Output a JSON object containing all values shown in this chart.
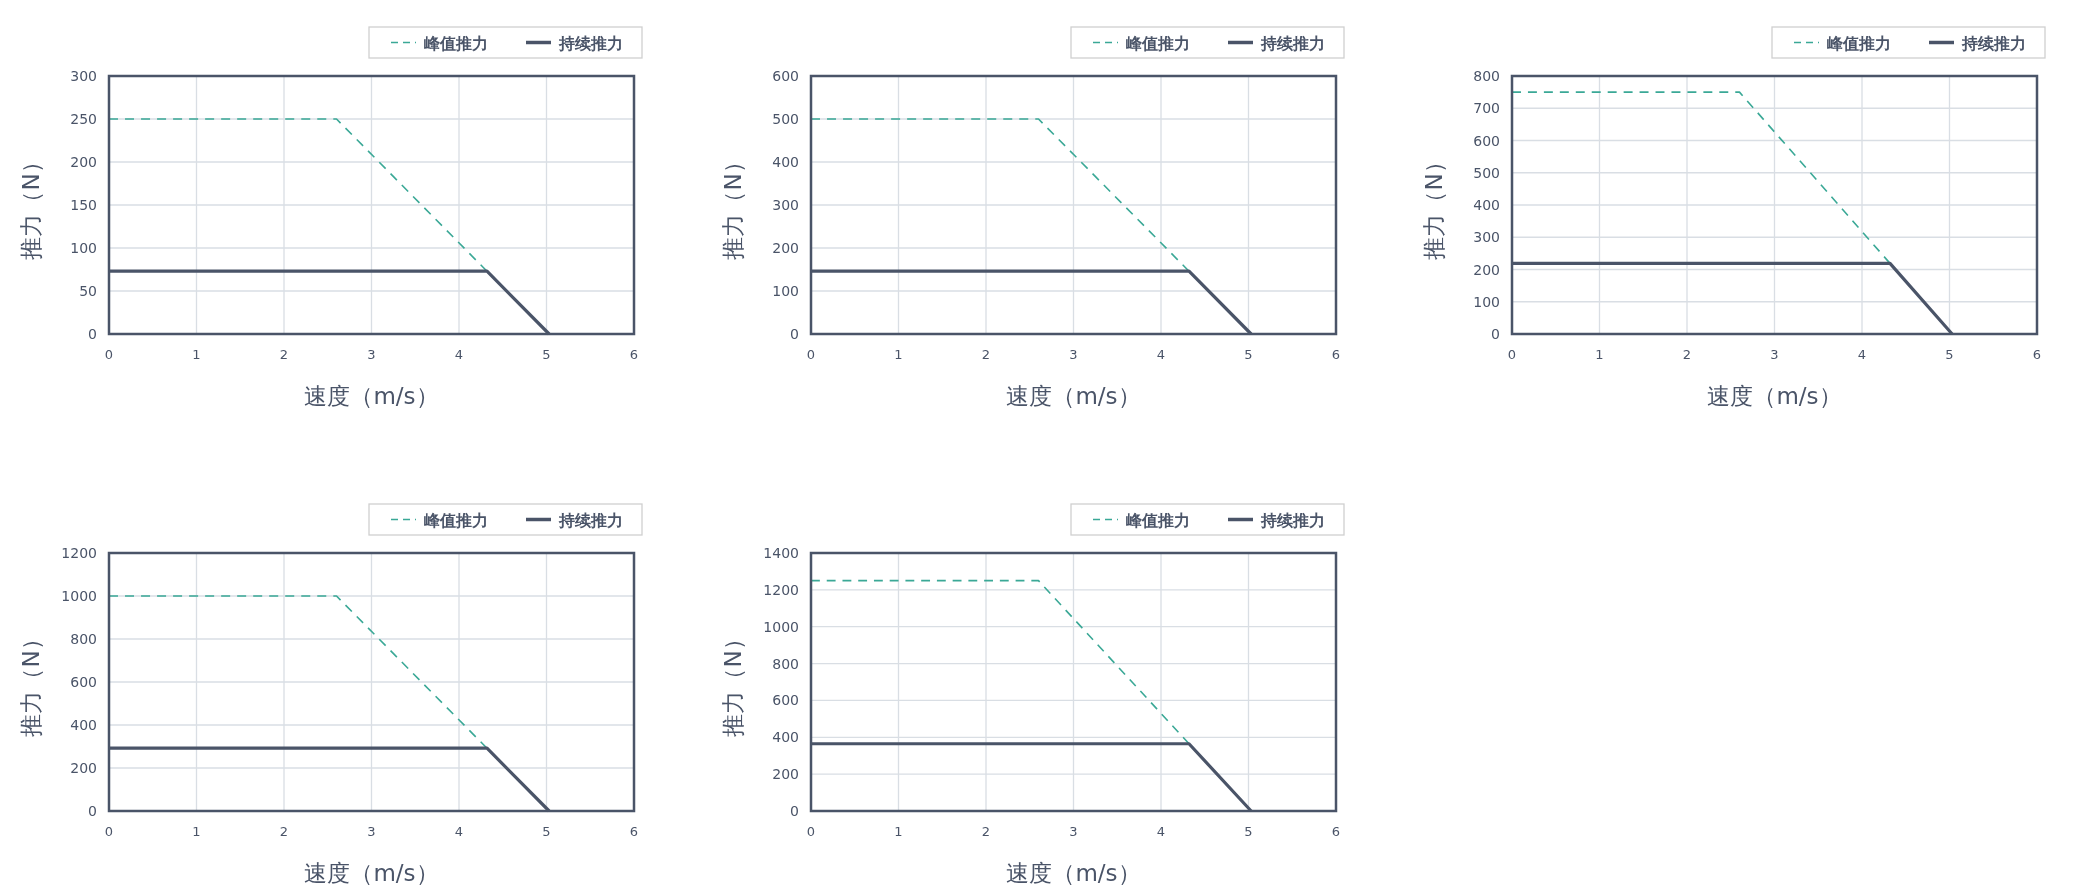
{
  "chart_data": [
    {
      "type": "line",
      "xlabel": "速度（m/s）",
      "ylabel": "推力（N）",
      "xlim": [
        0,
        6
      ],
      "xticks": [
        0,
        1,
        2,
        3,
        4,
        5,
        6
      ],
      "ylim": [
        0,
        300
      ],
      "yticks": [
        0,
        50,
        100,
        150,
        200,
        250,
        300
      ],
      "grid": true,
      "legend": "top right",
      "marker": "none",
      "series": [
        {
          "name": "峰值推力",
          "color": "#3aa896",
          "line_style": "dashed",
          "x": [
            0,
            2.6,
            4.32
          ],
          "values": [
            250,
            250,
            73
          ]
        },
        {
          "name": "持续推力",
          "color": "#4a5468",
          "line_style": "solid",
          "x": [
            0,
            4.32,
            5.03
          ],
          "values": [
            73,
            73,
            0
          ]
        }
      ]
    },
    {
      "type": "line",
      "xlabel": "速度（m/s）",
      "ylabel": "推力（N）",
      "xlim": [
        0,
        6
      ],
      "xticks": [
        0,
        1,
        2,
        3,
        4,
        5,
        6
      ],
      "ylim": [
        0,
        600
      ],
      "yticks": [
        0,
        100,
        200,
        300,
        400,
        500,
        600
      ],
      "grid": true,
      "legend": "top right",
      "marker": "none",
      "series": [
        {
          "name": "峰值推力",
          "color": "#3aa896",
          "line_style": "dashed",
          "x": [
            0,
            2.6,
            4.32
          ],
          "values": [
            500,
            500,
            146
          ]
        },
        {
          "name": "持续推力",
          "color": "#4a5468",
          "line_style": "solid",
          "x": [
            0,
            4.32,
            5.03
          ],
          "values": [
            146,
            146,
            0
          ]
        }
      ]
    },
    {
      "type": "line",
      "xlabel": "速度（m/s）",
      "ylabel": "推力（N）",
      "xlim": [
        0,
        6
      ],
      "xticks": [
        0,
        1,
        2,
        3,
        4,
        5,
        6
      ],
      "ylim": [
        0,
        800
      ],
      "yticks": [
        0,
        100,
        200,
        300,
        400,
        500,
        600,
        700,
        800
      ],
      "grid": true,
      "legend": "top right",
      "marker": "none",
      "series": [
        {
          "name": "峰值推力",
          "color": "#3aa896",
          "line_style": "dashed",
          "x": [
            0,
            2.6,
            4.32
          ],
          "values": [
            750,
            750,
            219
          ]
        },
        {
          "name": "持续推力",
          "color": "#4a5468",
          "line_style": "solid",
          "x": [
            0,
            4.32,
            5.03
          ],
          "values": [
            219,
            219,
            0
          ]
        }
      ]
    },
    {
      "type": "line",
      "xlabel": "速度（m/s）",
      "ylabel": "推力（N）",
      "xlim": [
        0,
        6
      ],
      "xticks": [
        0,
        1,
        2,
        3,
        4,
        5,
        6
      ],
      "ylim": [
        0,
        1200
      ],
      "yticks": [
        0,
        200,
        400,
        600,
        800,
        1000,
        1200
      ],
      "grid": true,
      "legend": "top right",
      "marker": "none",
      "series": [
        {
          "name": "峰值推力",
          "color": "#3aa896",
          "line_style": "dashed",
          "x": [
            0,
            2.6,
            4.32
          ],
          "values": [
            1000,
            1000,
            292
          ]
        },
        {
          "name": "持续推力",
          "color": "#4a5468",
          "line_style": "solid",
          "x": [
            0,
            4.32,
            5.03
          ],
          "values": [
            292,
            292,
            0
          ]
        }
      ]
    },
    {
      "type": "line",
      "xlabel": "速度（m/s）",
      "ylabel": "推力（N）",
      "xlim": [
        0,
        6
      ],
      "xticks": [
        0,
        1,
        2,
        3,
        4,
        5,
        6
      ],
      "ylim": [
        0,
        1400
      ],
      "yticks": [
        0,
        200,
        400,
        600,
        800,
        1000,
        1200,
        1400
      ],
      "grid": true,
      "legend": "top right",
      "marker": "none",
      "series": [
        {
          "name": "峰值推力",
          "color": "#3aa896",
          "line_style": "dashed",
          "x": [
            0,
            2.6,
            4.32
          ],
          "values": [
            1250,
            1250,
            365
          ]
        },
        {
          "name": "持续推力",
          "color": "#4a5468",
          "line_style": "solid",
          "x": [
            0,
            4.32,
            5.03
          ],
          "values": [
            365,
            365,
            0
          ]
        }
      ]
    }
  ]
}
